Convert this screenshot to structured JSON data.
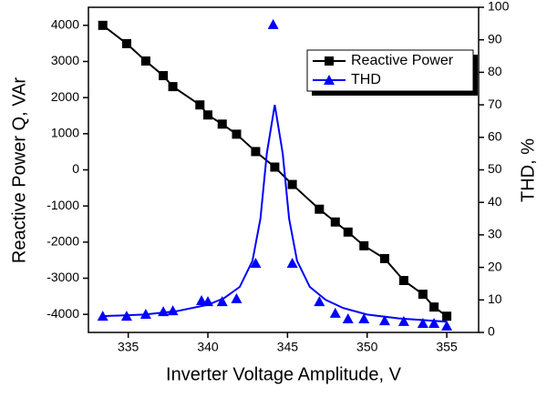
{
  "chart_data": {
    "type": "line",
    "x_label": "Inverter Voltage Amplitude, V",
    "y_label": "Reactive Power Q, VAr",
    "y2_label": "THD, %",
    "xlim": [
      332.5,
      357
    ],
    "xticks": [
      335,
      340,
      345,
      350,
      355
    ],
    "ylim": [
      -4500,
      4500
    ],
    "yticks": [
      -4000,
      -3000,
      -2000,
      -1000,
      0,
      1000,
      2000,
      3000,
      4000
    ],
    "y2lim": [
      0,
      100
    ],
    "y2ticks": [
      0,
      10,
      20,
      30,
      40,
      50,
      60,
      70,
      80,
      90,
      100
    ],
    "legend": "upper right",
    "series": [
      {
        "name": "Reactive Power",
        "color": "#000000",
        "marker": "square",
        "x": [
          333.4,
          334.9,
          336.1,
          337.2,
          337.8,
          339.5,
          340.0,
          340.9,
          341.8,
          343.0,
          344.2,
          345.3,
          347.0,
          348.0,
          348.8,
          349.8,
          351.1,
          352.3,
          353.5,
          354.2,
          355.0
        ],
        "values": [
          4000,
          3494,
          3013,
          2608,
          2304,
          1797,
          1519,
          1266,
          987,
          506,
          76,
          -405,
          -1089,
          -1443,
          -1722,
          -2101,
          -2456,
          -3063,
          -3443,
          -3797,
          -4051
        ]
      },
      {
        "name": "THD",
        "color": "#0000ff",
        "marker": "triangle",
        "axis": "y2",
        "x": [
          333.4,
          334.9,
          336.1,
          337.2,
          337.8,
          339.6,
          340.0,
          340.9,
          341.8,
          343.0,
          344.1,
          345.3,
          347.0,
          348.0,
          348.8,
          349.8,
          351.1,
          352.3,
          353.5,
          354.2,
          355.0
        ],
        "values": [
          5,
          5,
          5.6,
          6.4,
          6.7,
          9.8,
          9.5,
          9.5,
          10.4,
          21.3,
          94.7,
          21.3,
          9.5,
          5.9,
          4.2,
          4.2,
          3.6,
          3.4,
          2.8,
          2.8,
          2
        ],
        "fit_x": [
          333.4,
          336,
          338,
          340,
          341,
          342,
          342.8,
          343.3,
          343.7,
          344.2,
          344.7,
          345.1,
          345.6,
          346.4,
          347.4,
          348.5,
          350,
          352,
          355
        ],
        "fit_values": [
          5,
          5.5,
          6.5,
          8.5,
          10.5,
          14,
          22,
          35,
          55,
          70,
          55,
          35,
          22,
          14,
          10,
          7.5,
          5.5,
          4.3,
          3.3
        ]
      }
    ]
  }
}
